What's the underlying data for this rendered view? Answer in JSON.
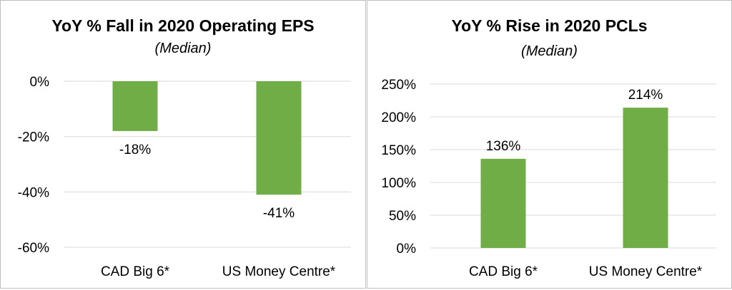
{
  "colors": {
    "bar": "#70ad47",
    "grid": "#d9d9d9",
    "border": "#bfbfbf",
    "text": "#000000"
  },
  "chart_data": [
    {
      "type": "bar",
      "title": "YoY % Fall in 2020 Operating EPS",
      "subtitle": "(Median)",
      "categories": [
        "CAD Big 6*",
        "US Money Centre*"
      ],
      "values": [
        -18,
        -41
      ],
      "data_labels": [
        "-18%",
        "-41%"
      ],
      "ylim": [
        -60,
        0
      ],
      "yticks": [
        0,
        -20,
        -40,
        -60
      ],
      "ytick_labels": [
        "0%",
        "-20%",
        "-40%",
        "-60%"
      ],
      "grid": true
    },
    {
      "type": "bar",
      "title": "YoY % Rise in 2020 PCLs",
      "subtitle": "(Median)",
      "categories": [
        "CAD Big 6*",
        "US Money Centre*"
      ],
      "values": [
        136,
        214
      ],
      "data_labels": [
        "136%",
        "214%"
      ],
      "ylim": [
        0,
        250
      ],
      "yticks": [
        250,
        200,
        150,
        100,
        50,
        0
      ],
      "ytick_labels": [
        "250%",
        "200%",
        "150%",
        "100%",
        "50%",
        "0%"
      ],
      "grid": true
    }
  ]
}
